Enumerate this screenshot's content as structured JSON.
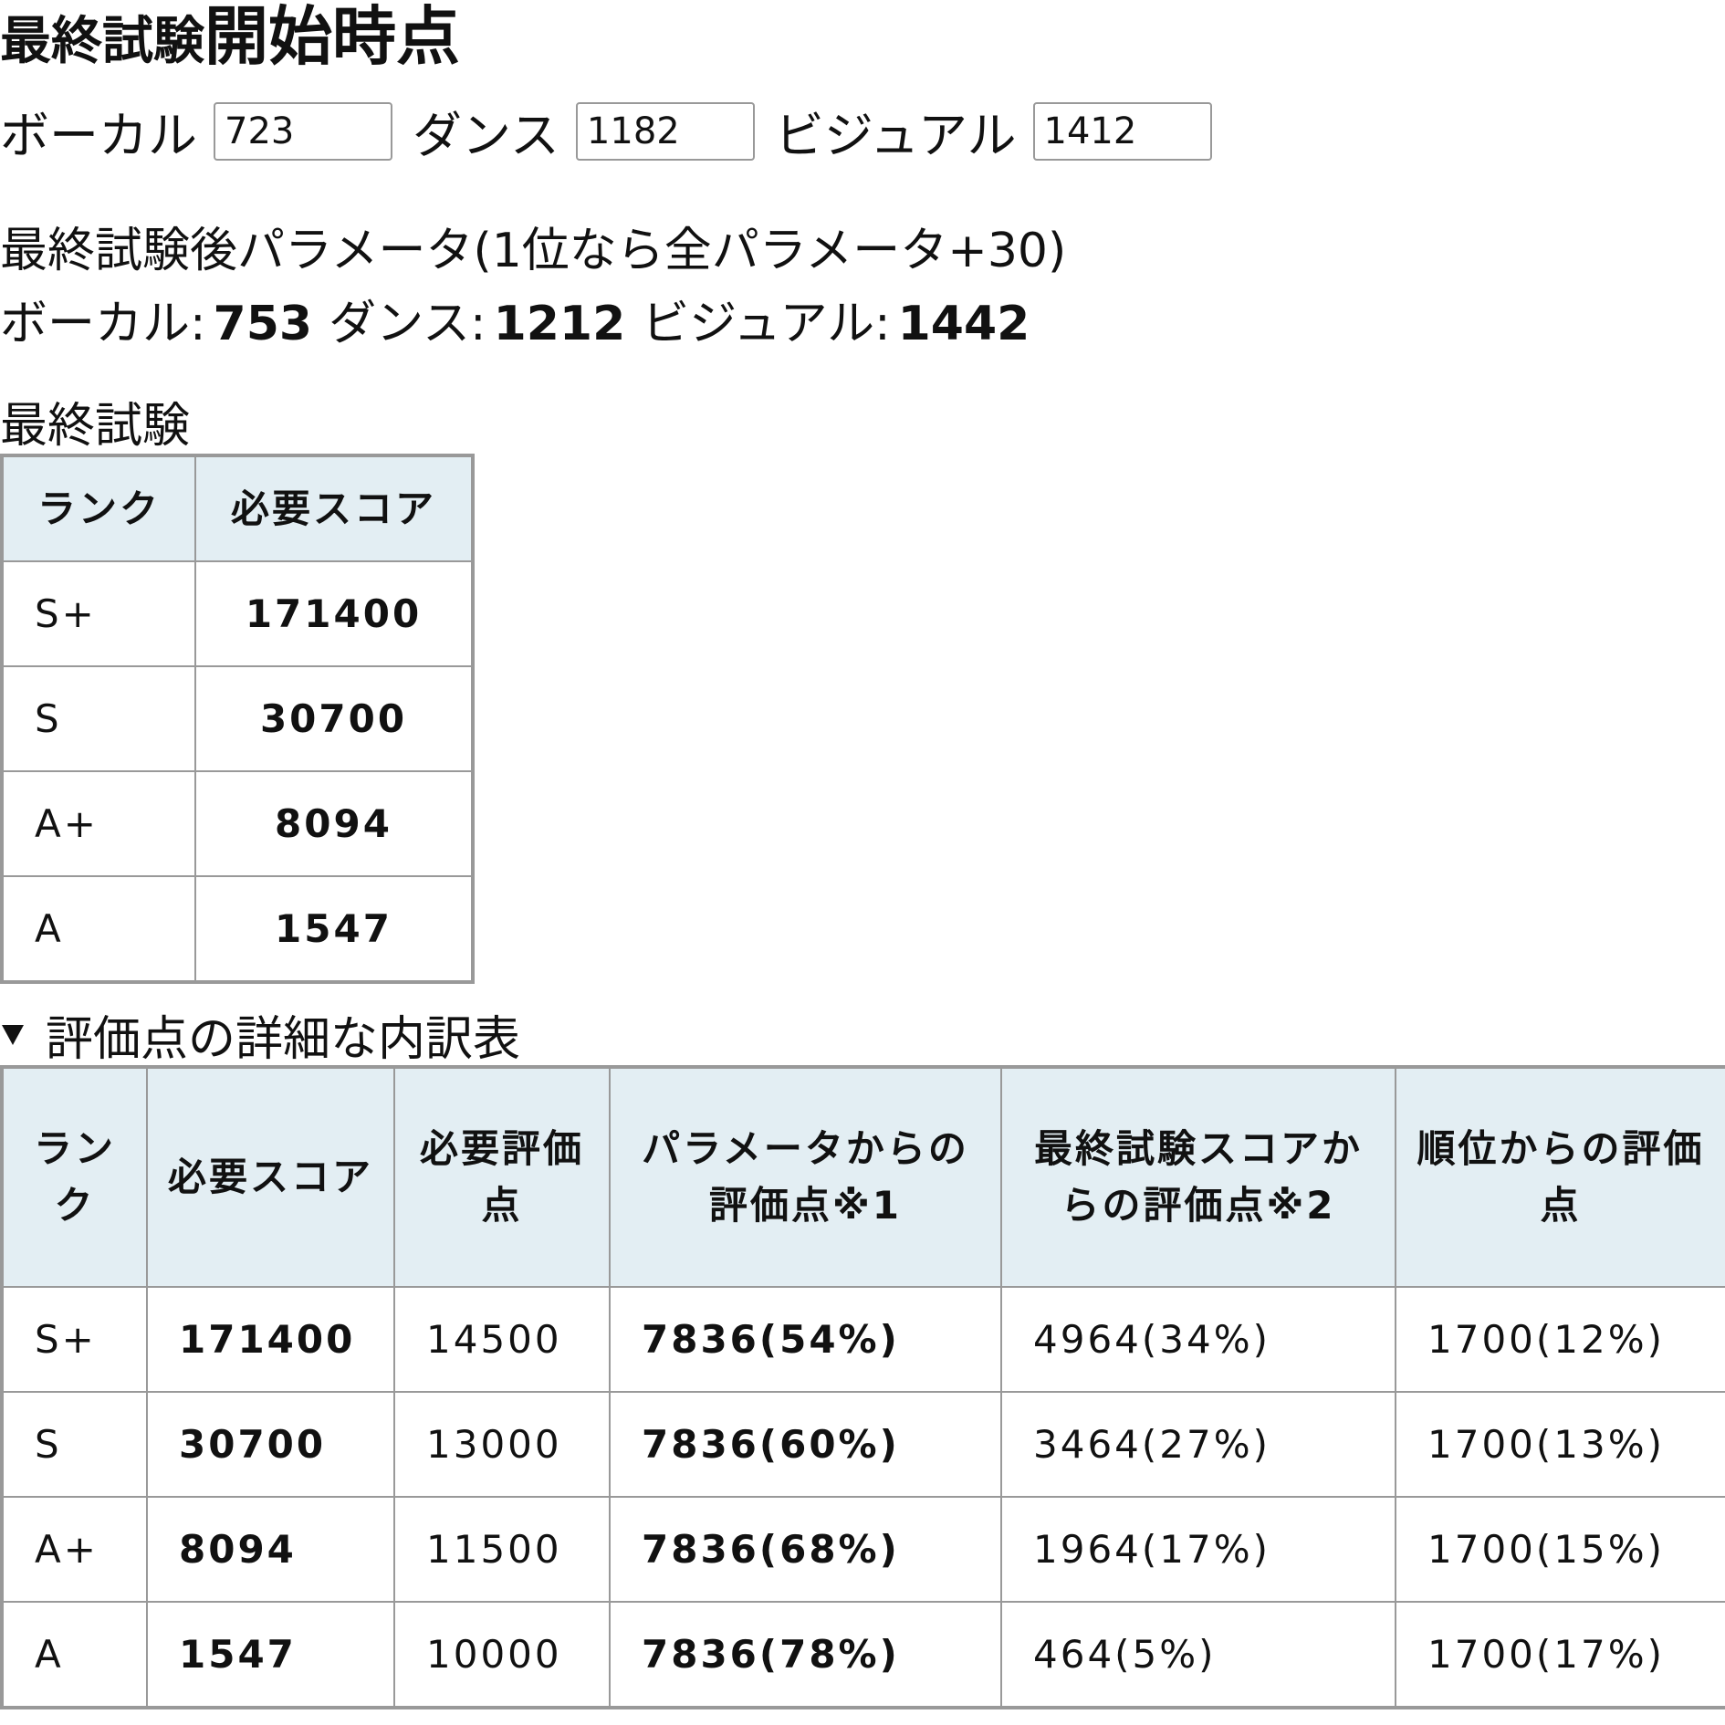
{
  "header": {
    "title_small": "最終試験",
    "title_large": "開始時点"
  },
  "inputs": [
    {
      "label": "ボーカル",
      "value": "723"
    },
    {
      "label": "ダンス",
      "value": "1182"
    },
    {
      "label": "ビジュアル",
      "value": "1412"
    }
  ],
  "result": {
    "heading": "最終試験後パラメータ(1位なら全パラメータ+30)",
    "items": [
      {
        "label": "ボーカル:",
        "value": "753"
      },
      {
        "label": "ダンス:",
        "value": "1212"
      },
      {
        "label": "ビジュアル:",
        "value": "1442"
      }
    ]
  },
  "table1": {
    "caption": "最終試験",
    "header": [
      "ランク",
      "必要スコア"
    ],
    "rows": [
      [
        "S+",
        "171400"
      ],
      [
        "S",
        "30700"
      ],
      [
        "A+",
        "8094"
      ],
      [
        "A",
        "1547"
      ]
    ]
  },
  "details": {
    "summary": "評価点の詳細な内訳表",
    "table": {
      "header": [
        "ランク",
        "必要スコア",
        "必要評価点",
        "パラメータからの評価点※1",
        "最終試験スコアからの評価点※2",
        "順位からの評価点"
      ],
      "rows": [
        [
          "S+",
          "171400",
          "14500",
          "7836(54%)",
          "4964(34%)",
          "1700(12%)"
        ],
        [
          "S",
          "30700",
          "13000",
          "7836(60%)",
          "3464(27%)",
          "1700(13%)"
        ],
        [
          "A+",
          "8094",
          "11500",
          "7836(68%)",
          "1964(17%)",
          "1700(15%)"
        ],
        [
          "A",
          "1547",
          "10000",
          "7836(78%)",
          "464(5%)",
          "1700(17%)"
        ]
      ]
    }
  }
}
